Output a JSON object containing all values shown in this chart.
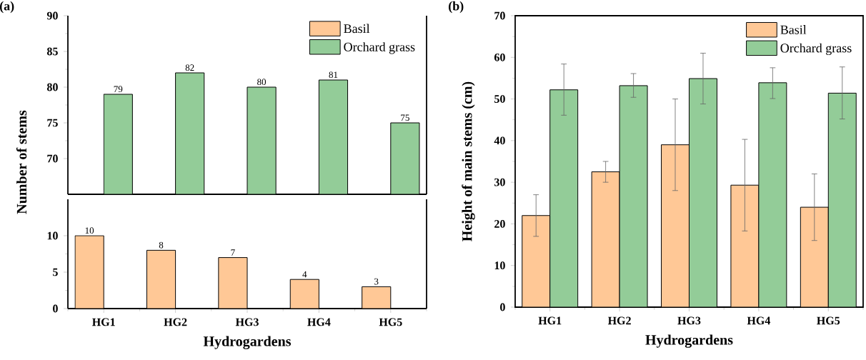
{
  "chart_data": [
    {
      "type": "bar",
      "title": "(a)",
      "categories": [
        null,
        null,
        null,
        null,
        null
      ],
      "series": [
        {
          "name": "Basil",
          "color": "#ffc896",
          "values": [
            null,
            null,
            null,
            null,
            null
          ]
        },
        {
          "name": "Orchard grass",
          "color": "#93cc98",
          "values": [
            79,
            82,
            80,
            81,
            75
          ],
          "value_labels": [
            "79",
            "82",
            "80",
            "81",
            "75"
          ]
        }
      ],
      "ylim": [
        65,
        90
      ],
      "yticks": [
        70,
        75,
        80,
        85,
        90
      ],
      "legend": "top right",
      "tick_labels": "y"
    },
    {
      "type": "bar",
      "xlabel": "Hydrogardens",
      "ylabel": "Number of stems",
      "categories": [
        "HG1",
        "HG2",
        "HG3",
        "HG4",
        "HG5"
      ],
      "series": [
        {
          "color": "#ffc896",
          "values": [
            10,
            8,
            7,
            4,
            3
          ],
          "value_labels": [
            "10",
            "8",
            "7",
            "4",
            "3"
          ]
        },
        {
          "color": "#93cc98",
          "values": [
            null,
            null,
            null,
            null,
            null
          ]
        }
      ],
      "ylim": [
        0,
        15
      ],
      "yticks": [
        0,
        5,
        10
      ]
    },
    {
      "type": "bar",
      "title": "(b)",
      "xlabel": "Hydrogardens",
      "ylabel": "Height of main stems (cm)",
      "categories": [
        "HG1",
        "HG2",
        "HG3",
        "HG4",
        "HG5"
      ],
      "series": [
        {
          "name": "Basil",
          "color": "#ffc896",
          "values": [
            22,
            32.5,
            39,
            29.3,
            24
          ],
          "errors": [
            [
              17,
              27
            ],
            [
              30,
              35
            ],
            [
              28,
              50
            ],
            [
              18.3,
              40.3
            ],
            [
              16,
              32
            ]
          ]
        },
        {
          "name": "Orchard grass",
          "color": "#93cc98",
          "values": [
            52.2,
            53.2,
            54.9,
            53.9,
            51.4
          ],
          "errors": [
            [
              46.1,
              58.4
            ],
            [
              50.4,
              56.1
            ],
            [
              48.8,
              61
            ],
            [
              50.1,
              57.5
            ],
            [
              45.2,
              57.7
            ]
          ]
        }
      ],
      "ylim": [
        0,
        70
      ],
      "yticks": [
        0,
        10,
        20,
        30,
        40,
        50,
        60,
        70
      ],
      "legend": "top right"
    }
  ]
}
